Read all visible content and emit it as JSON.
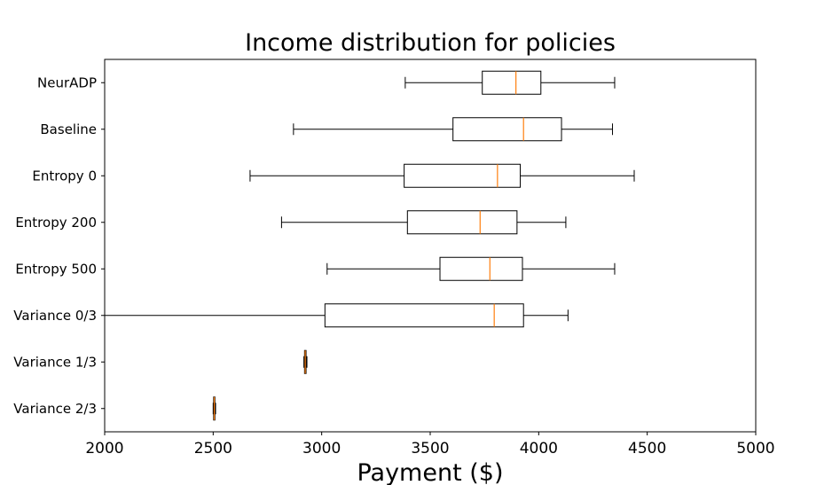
{
  "chart_data": {
    "type": "boxplot",
    "orientation": "horizontal",
    "title": "Income distribution for policies",
    "xlabel": "Payment ($)",
    "ylabel": "",
    "xlim": [
      2000,
      5000
    ],
    "xticks": [
      2000,
      2500,
      3000,
      3500,
      4000,
      4500,
      5000
    ],
    "grid": false,
    "colors": {
      "box": "#000000",
      "median": "#ff7f0e"
    },
    "categories": [
      "NeurADP",
      "Baseline",
      "Entropy 0",
      "Entropy 200",
      "Entropy 500",
      "Variance 0/3",
      "Variance 1/3",
      "Variance 2/3"
    ],
    "boxes": [
      {
        "label": "NeurADP",
        "whisker_low": 3385,
        "q1": 3740,
        "median": 3895,
        "q3": 4010,
        "whisker_high": 4350
      },
      {
        "label": "Baseline",
        "whisker_low": 2870,
        "q1": 3605,
        "median": 3930,
        "q3": 4105,
        "whisker_high": 4340
      },
      {
        "label": "Entropy 0",
        "whisker_low": 2670,
        "q1": 3380,
        "median": 3810,
        "q3": 3915,
        "whisker_high": 4440
      },
      {
        "label": "Entropy 200",
        "whisker_low": 2815,
        "q1": 3395,
        "median": 3730,
        "q3": 3900,
        "whisker_high": 4125
      },
      {
        "label": "Entropy 500",
        "whisker_low": 3025,
        "q1": 3545,
        "median": 3775,
        "q3": 3925,
        "whisker_high": 4350
      },
      {
        "label": "Variance 0/3",
        "whisker_low": 2000,
        "q1": 3015,
        "median": 3795,
        "q3": 3930,
        "whisker_high": 4135
      },
      {
        "label": "Variance 1/3",
        "whisker_low": 2918,
        "q1": 2921,
        "median": 2924,
        "q3": 2928,
        "whisker_high": 2932
      },
      {
        "label": "Variance 2/3",
        "whisker_low": 2500,
        "q1": 2502,
        "median": 2505,
        "q3": 2508,
        "whisker_high": 2511
      }
    ]
  }
}
